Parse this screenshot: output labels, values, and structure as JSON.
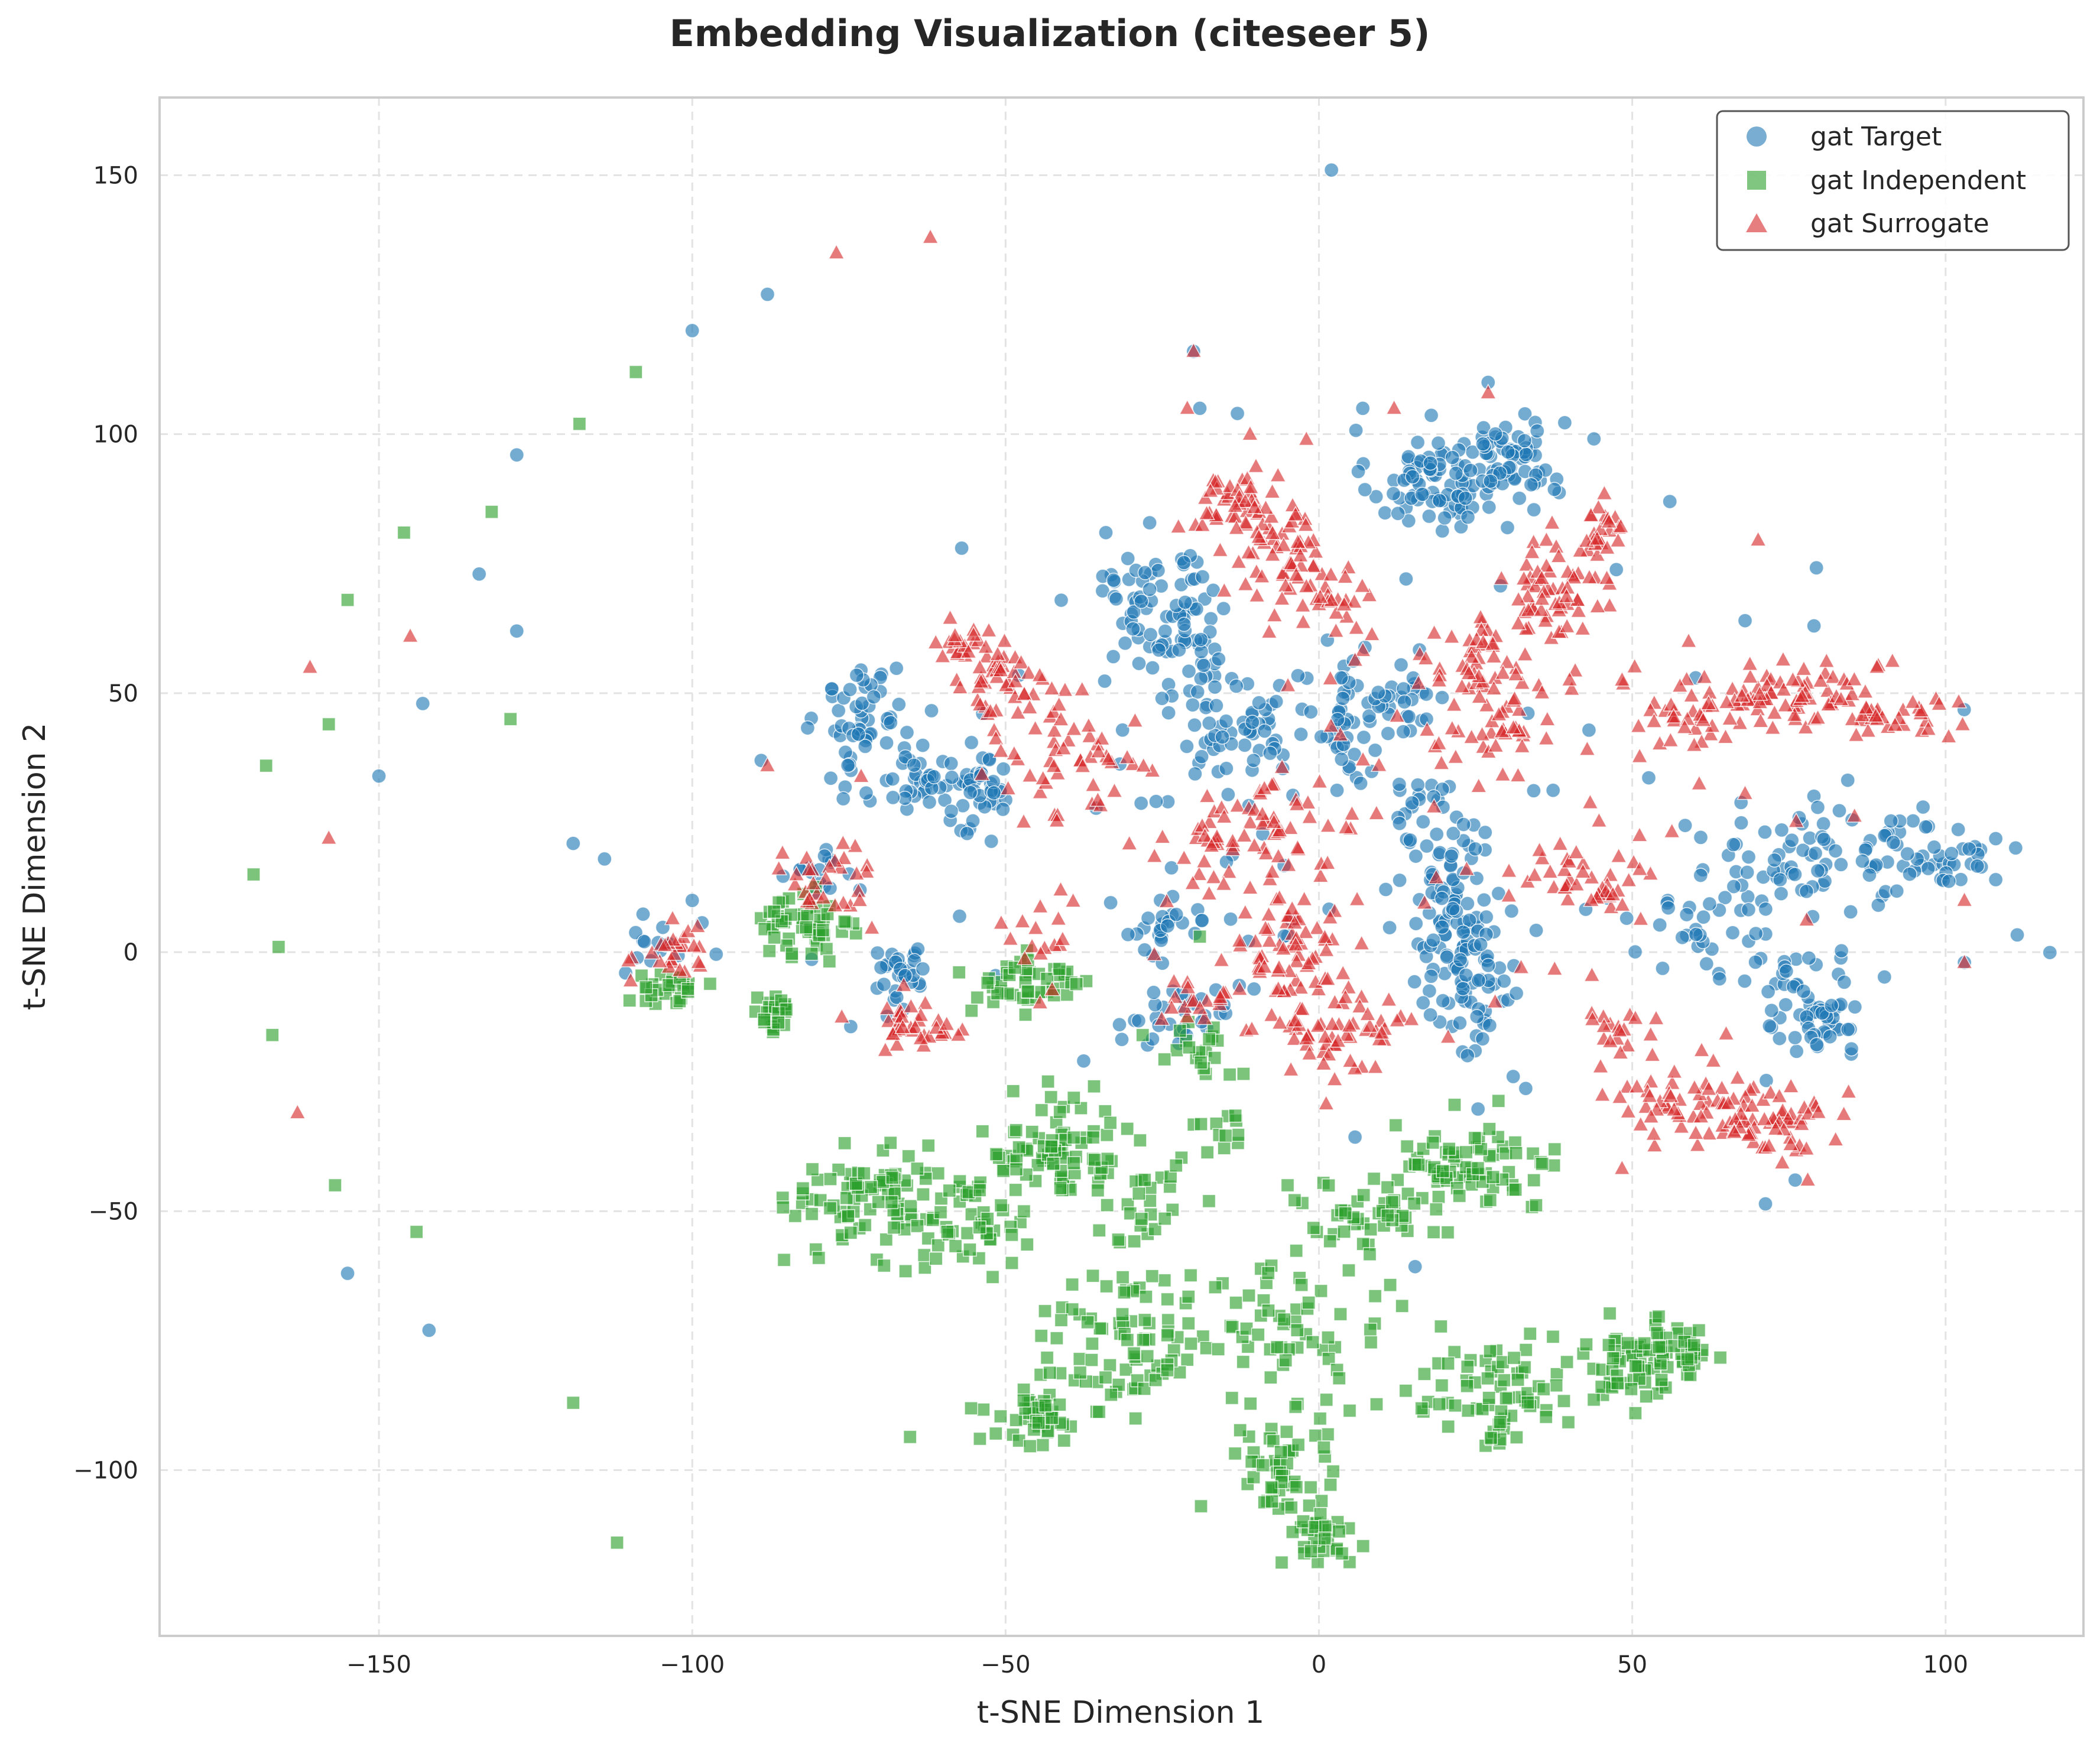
{
  "chart_data": {
    "type": "scatter",
    "title": "Embedding Visualization (citeseer 5)",
    "xlabel": "t-SNE Dimension 1",
    "ylabel": "t-SNE Dimension 2",
    "xlim": [
      -185,
      122
    ],
    "ylim": [
      -132,
      165
    ],
    "xticks": [
      -150,
      -100,
      -50,
      0,
      50,
      100
    ],
    "yticks": [
      -100,
      -50,
      0,
      50,
      100,
      150
    ],
    "xtick_labels": [
      "−150",
      "−100",
      "−50",
      "0",
      "50",
      "100"
    ],
    "ytick_labels": [
      "−100",
      "−50",
      "0",
      "50",
      "100",
      "150"
    ],
    "grid": true,
    "legend_position": "top-right",
    "series": [
      {
        "name": "gat Target",
        "marker": "circle",
        "color": "#1f77b4",
        "points": [
          [
            2,
            151
          ],
          [
            -88,
            127
          ],
          [
            -100,
            120
          ],
          [
            -128,
            96
          ],
          [
            -134,
            73
          ],
          [
            -128,
            62
          ],
          [
            -143,
            48
          ],
          [
            -150,
            34
          ],
          [
            -155,
            -62
          ],
          [
            -142,
            -73
          ],
          [
            -119,
            21
          ],
          [
            -114,
            18
          ],
          [
            -20,
            116
          ],
          [
            -19,
            105
          ],
          [
            -13,
            104
          ],
          [
            7,
            105
          ],
          [
            27,
            110
          ],
          [
            56,
            87
          ],
          [
            -57,
            78
          ],
          [
            -34,
            81
          ],
          [
            -89,
            37
          ],
          [
            -100,
            10
          ],
          [
            31,
            -24
          ],
          [
            76,
            -44
          ],
          [
            103,
            -2
          ],
          [
            108,
            14
          ],
          [
            68,
            64
          ],
          [
            79,
            63
          ]
        ],
        "clusters": [
          {
            "cx": 18,
            "cy": 91,
            "sx": 5,
            "sy": 5,
            "n": 85
          },
          {
            "cx": 31,
            "cy": 96,
            "sx": 4,
            "sy": 4,
            "n": 60
          },
          {
            "cx": -27,
            "cy": 70,
            "sx": 5,
            "sy": 5,
            "n": 45
          },
          {
            "cx": -21,
            "cy": 59,
            "sx": 4,
            "sy": 6,
            "n": 45
          },
          {
            "cx": -72,
            "cy": 45,
            "sx": 4,
            "sy": 5,
            "n": 55
          },
          {
            "cx": -63,
            "cy": 33,
            "sx": 5,
            "sy": 4,
            "n": 40
          },
          {
            "cx": -54,
            "cy": 30,
            "sx": 3,
            "sy": 4,
            "n": 35
          },
          {
            "cx": -12,
            "cy": 45,
            "sx": 5,
            "sy": 6,
            "n": 50
          },
          {
            "cx": 4,
            "cy": 42,
            "sx": 4,
            "sy": 6,
            "n": 40
          },
          {
            "cx": 13,
            "cy": 50,
            "sx": 4,
            "sy": 4,
            "n": 30
          },
          {
            "cx": 20,
            "cy": 5,
            "sx": 3,
            "sy": 9,
            "n": 70
          },
          {
            "cx": 26,
            "cy": -4,
            "sx": 3,
            "sy": 8,
            "n": 50
          },
          {
            "cx": 18,
            "cy": 26,
            "sx": 4,
            "sy": 4,
            "n": 30
          },
          {
            "cx": 76,
            "cy": 18,
            "sx": 6,
            "sy": 6,
            "n": 55
          },
          {
            "cx": 97,
            "cy": 19,
            "sx": 5,
            "sy": 4,
            "n": 55
          },
          {
            "cx": 79,
            "cy": -10,
            "sx": 5,
            "sy": 5,
            "n": 60
          },
          {
            "cx": 62,
            "cy": 3,
            "sx": 5,
            "sy": 5,
            "n": 30
          },
          {
            "cx": -66,
            "cy": -4,
            "sx": 3,
            "sy": 3,
            "n": 30
          },
          {
            "cx": -25,
            "cy": 5,
            "sx": 4,
            "sy": 4,
            "n": 25
          },
          {
            "cx": -22,
            "cy": -12,
            "sx": 5,
            "sy": 3,
            "n": 25
          },
          {
            "cx": -104,
            "cy": 0,
            "sx": 3,
            "sy": 3,
            "n": 15
          },
          {
            "cx": -80,
            "cy": 15,
            "sx": 3,
            "sy": 3,
            "n": 15
          },
          {
            "cx": 0,
            "cy": 20,
            "sx": 40,
            "sy": 30,
            "n": 90
          }
        ]
      },
      {
        "name": "gat Independent",
        "marker": "square",
        "color": "#2ca02c",
        "points": [
          [
            -109,
            112
          ],
          [
            -118,
            102
          ],
          [
            -132,
            85
          ],
          [
            -146,
            81
          ],
          [
            -155,
            68
          ],
          [
            -129,
            45
          ],
          [
            -158,
            44
          ],
          [
            -168,
            36
          ],
          [
            -170,
            15
          ],
          [
            -166,
            1
          ],
          [
            -167,
            -16
          ],
          [
            -157,
            -45
          ],
          [
            -144,
            -54
          ],
          [
            -119,
            -87
          ],
          [
            -112,
            -114
          ],
          [
            -5,
            -45
          ],
          [
            -49,
            -60
          ],
          [
            -19,
            3
          ]
        ],
        "clusters": [
          {
            "cx": -70,
            "cy": -48,
            "sx": 7,
            "sy": 5,
            "n": 90
          },
          {
            "cx": -57,
            "cy": -52,
            "sx": 5,
            "sy": 5,
            "n": 40
          },
          {
            "cx": -42,
            "cy": -38,
            "sx": 6,
            "sy": 5,
            "n": 80
          },
          {
            "cx": -28,
            "cy": -48,
            "sx": 4,
            "sy": 5,
            "n": 30
          },
          {
            "cx": 24,
            "cy": -42,
            "sx": 7,
            "sy": 4,
            "n": 80
          },
          {
            "cx": 8,
            "cy": -52,
            "sx": 6,
            "sy": 4,
            "n": 40
          },
          {
            "cx": -30,
            "cy": -74,
            "sx": 9,
            "sy": 7,
            "n": 90
          },
          {
            "cx": -5,
            "cy": -75,
            "sx": 8,
            "sy": 7,
            "n": 60
          },
          {
            "cx": -45,
            "cy": -90,
            "sx": 4,
            "sy": 3,
            "n": 40
          },
          {
            "cx": 28,
            "cy": -85,
            "sx": 7,
            "sy": 5,
            "n": 70
          },
          {
            "cx": 50,
            "cy": -80,
            "sx": 6,
            "sy": 4,
            "n": 60
          },
          {
            "cx": 56,
            "cy": -76,
            "sx": 4,
            "sy": 3,
            "n": 30
          },
          {
            "cx": -6,
            "cy": -100,
            "sx": 4,
            "sy": 7,
            "n": 50
          },
          {
            "cx": 0,
            "cy": -113,
            "sx": 3,
            "sy": 3,
            "n": 30
          },
          {
            "cx": -82,
            "cy": 4,
            "sx": 4,
            "sy": 4,
            "n": 50
          },
          {
            "cx": -87,
            "cy": -12,
            "sx": 2,
            "sy": 2,
            "n": 25
          },
          {
            "cx": -46,
            "cy": -6,
            "sx": 5,
            "sy": 3,
            "n": 45
          },
          {
            "cx": -105,
            "cy": -7,
            "sx": 3,
            "sy": 2,
            "n": 25
          },
          {
            "cx": -20,
            "cy": -20,
            "sx": 3,
            "sy": 3,
            "n": 20
          },
          {
            "cx": -15,
            "cy": -34,
            "sx": 2,
            "sy": 2,
            "n": 12
          }
        ]
      },
      {
        "name": "gat Surrogate",
        "marker": "triangle",
        "color": "#d62728",
        "points": [
          [
            -62,
            138
          ],
          [
            -77,
            135
          ],
          [
            -145,
            61
          ],
          [
            -161,
            55
          ],
          [
            -158,
            22
          ],
          [
            -163,
            -31
          ],
          [
            -20,
            116
          ],
          [
            -11,
            100
          ],
          [
            -21,
            105
          ],
          [
            -2,
            99
          ],
          [
            12,
            105
          ],
          [
            27,
            108
          ],
          [
            -88,
            36
          ],
          [
            -99,
            -2
          ],
          [
            103,
            -2
          ],
          [
            103,
            10
          ],
          [
            78,
            -44
          ],
          [
            46,
            78
          ],
          [
            59,
            60
          ]
        ],
        "clusters": [
          {
            "cx": -14,
            "cy": 86,
            "sx": 4,
            "sy": 3,
            "n": 40
          },
          {
            "cx": -6,
            "cy": 78,
            "sx": 4,
            "sy": 5,
            "n": 55
          },
          {
            "cx": 2,
            "cy": 68,
            "sx": 3,
            "sy": 3,
            "n": 25
          },
          {
            "cx": 37,
            "cy": 70,
            "sx": 4,
            "sy": 5,
            "n": 55
          },
          {
            "cx": 44,
            "cy": 80,
            "sx": 3,
            "sy": 3,
            "n": 25
          },
          {
            "cx": 26,
            "cy": 57,
            "sx": 4,
            "sy": 4,
            "n": 35
          },
          {
            "cx": -55,
            "cy": 58,
            "sx": 4,
            "sy": 3,
            "n": 30
          },
          {
            "cx": -48,
            "cy": 50,
            "sx": 4,
            "sy": 4,
            "n": 35
          },
          {
            "cx": -38,
            "cy": 38,
            "sx": 5,
            "sy": 6,
            "n": 45
          },
          {
            "cx": -17,
            "cy": 20,
            "sx": 4,
            "sy": 4,
            "n": 30
          },
          {
            "cx": -8,
            "cy": 26,
            "sx": 3,
            "sy": 4,
            "n": 25
          },
          {
            "cx": -5,
            "cy": 2,
            "sx": 5,
            "sy": 7,
            "n": 70
          },
          {
            "cx": 5,
            "cy": -15,
            "sx": 6,
            "sy": 4,
            "n": 55
          },
          {
            "cx": 29,
            "cy": 45,
            "sx": 5,
            "sy": 6,
            "n": 45
          },
          {
            "cx": 74,
            "cy": 50,
            "sx": 8,
            "sy": 3,
            "n": 70
          },
          {
            "cx": 90,
            "cy": 46,
            "sx": 5,
            "sy": 3,
            "n": 35
          },
          {
            "cx": 60,
            "cy": 46,
            "sx": 4,
            "sy": 3,
            "n": 25
          },
          {
            "cx": 60,
            "cy": -30,
            "sx": 7,
            "sy": 4,
            "n": 65
          },
          {
            "cx": 73,
            "cy": -33,
            "sx": 5,
            "sy": 3,
            "n": 40
          },
          {
            "cx": 45,
            "cy": 15,
            "sx": 5,
            "sy": 4,
            "n": 40
          },
          {
            "cx": 48,
            "cy": -17,
            "sx": 4,
            "sy": 3,
            "n": 20
          },
          {
            "cx": -65,
            "cy": -14,
            "sx": 4,
            "sy": 3,
            "n": 35
          },
          {
            "cx": -77,
            "cy": 14,
            "sx": 4,
            "sy": 4,
            "n": 30
          },
          {
            "cx": -104,
            "cy": 0,
            "sx": 3,
            "sy": 3,
            "n": 25
          },
          {
            "cx": -19,
            "cy": -10,
            "sx": 3,
            "sy": 2,
            "n": 15
          },
          {
            "cx": -45,
            "cy": 3,
            "sx": 3,
            "sy": 3,
            "n": 15
          },
          {
            "cx": 10,
            "cy": 25,
            "sx": 30,
            "sy": 25,
            "n": 80
          }
        ]
      }
    ]
  }
}
